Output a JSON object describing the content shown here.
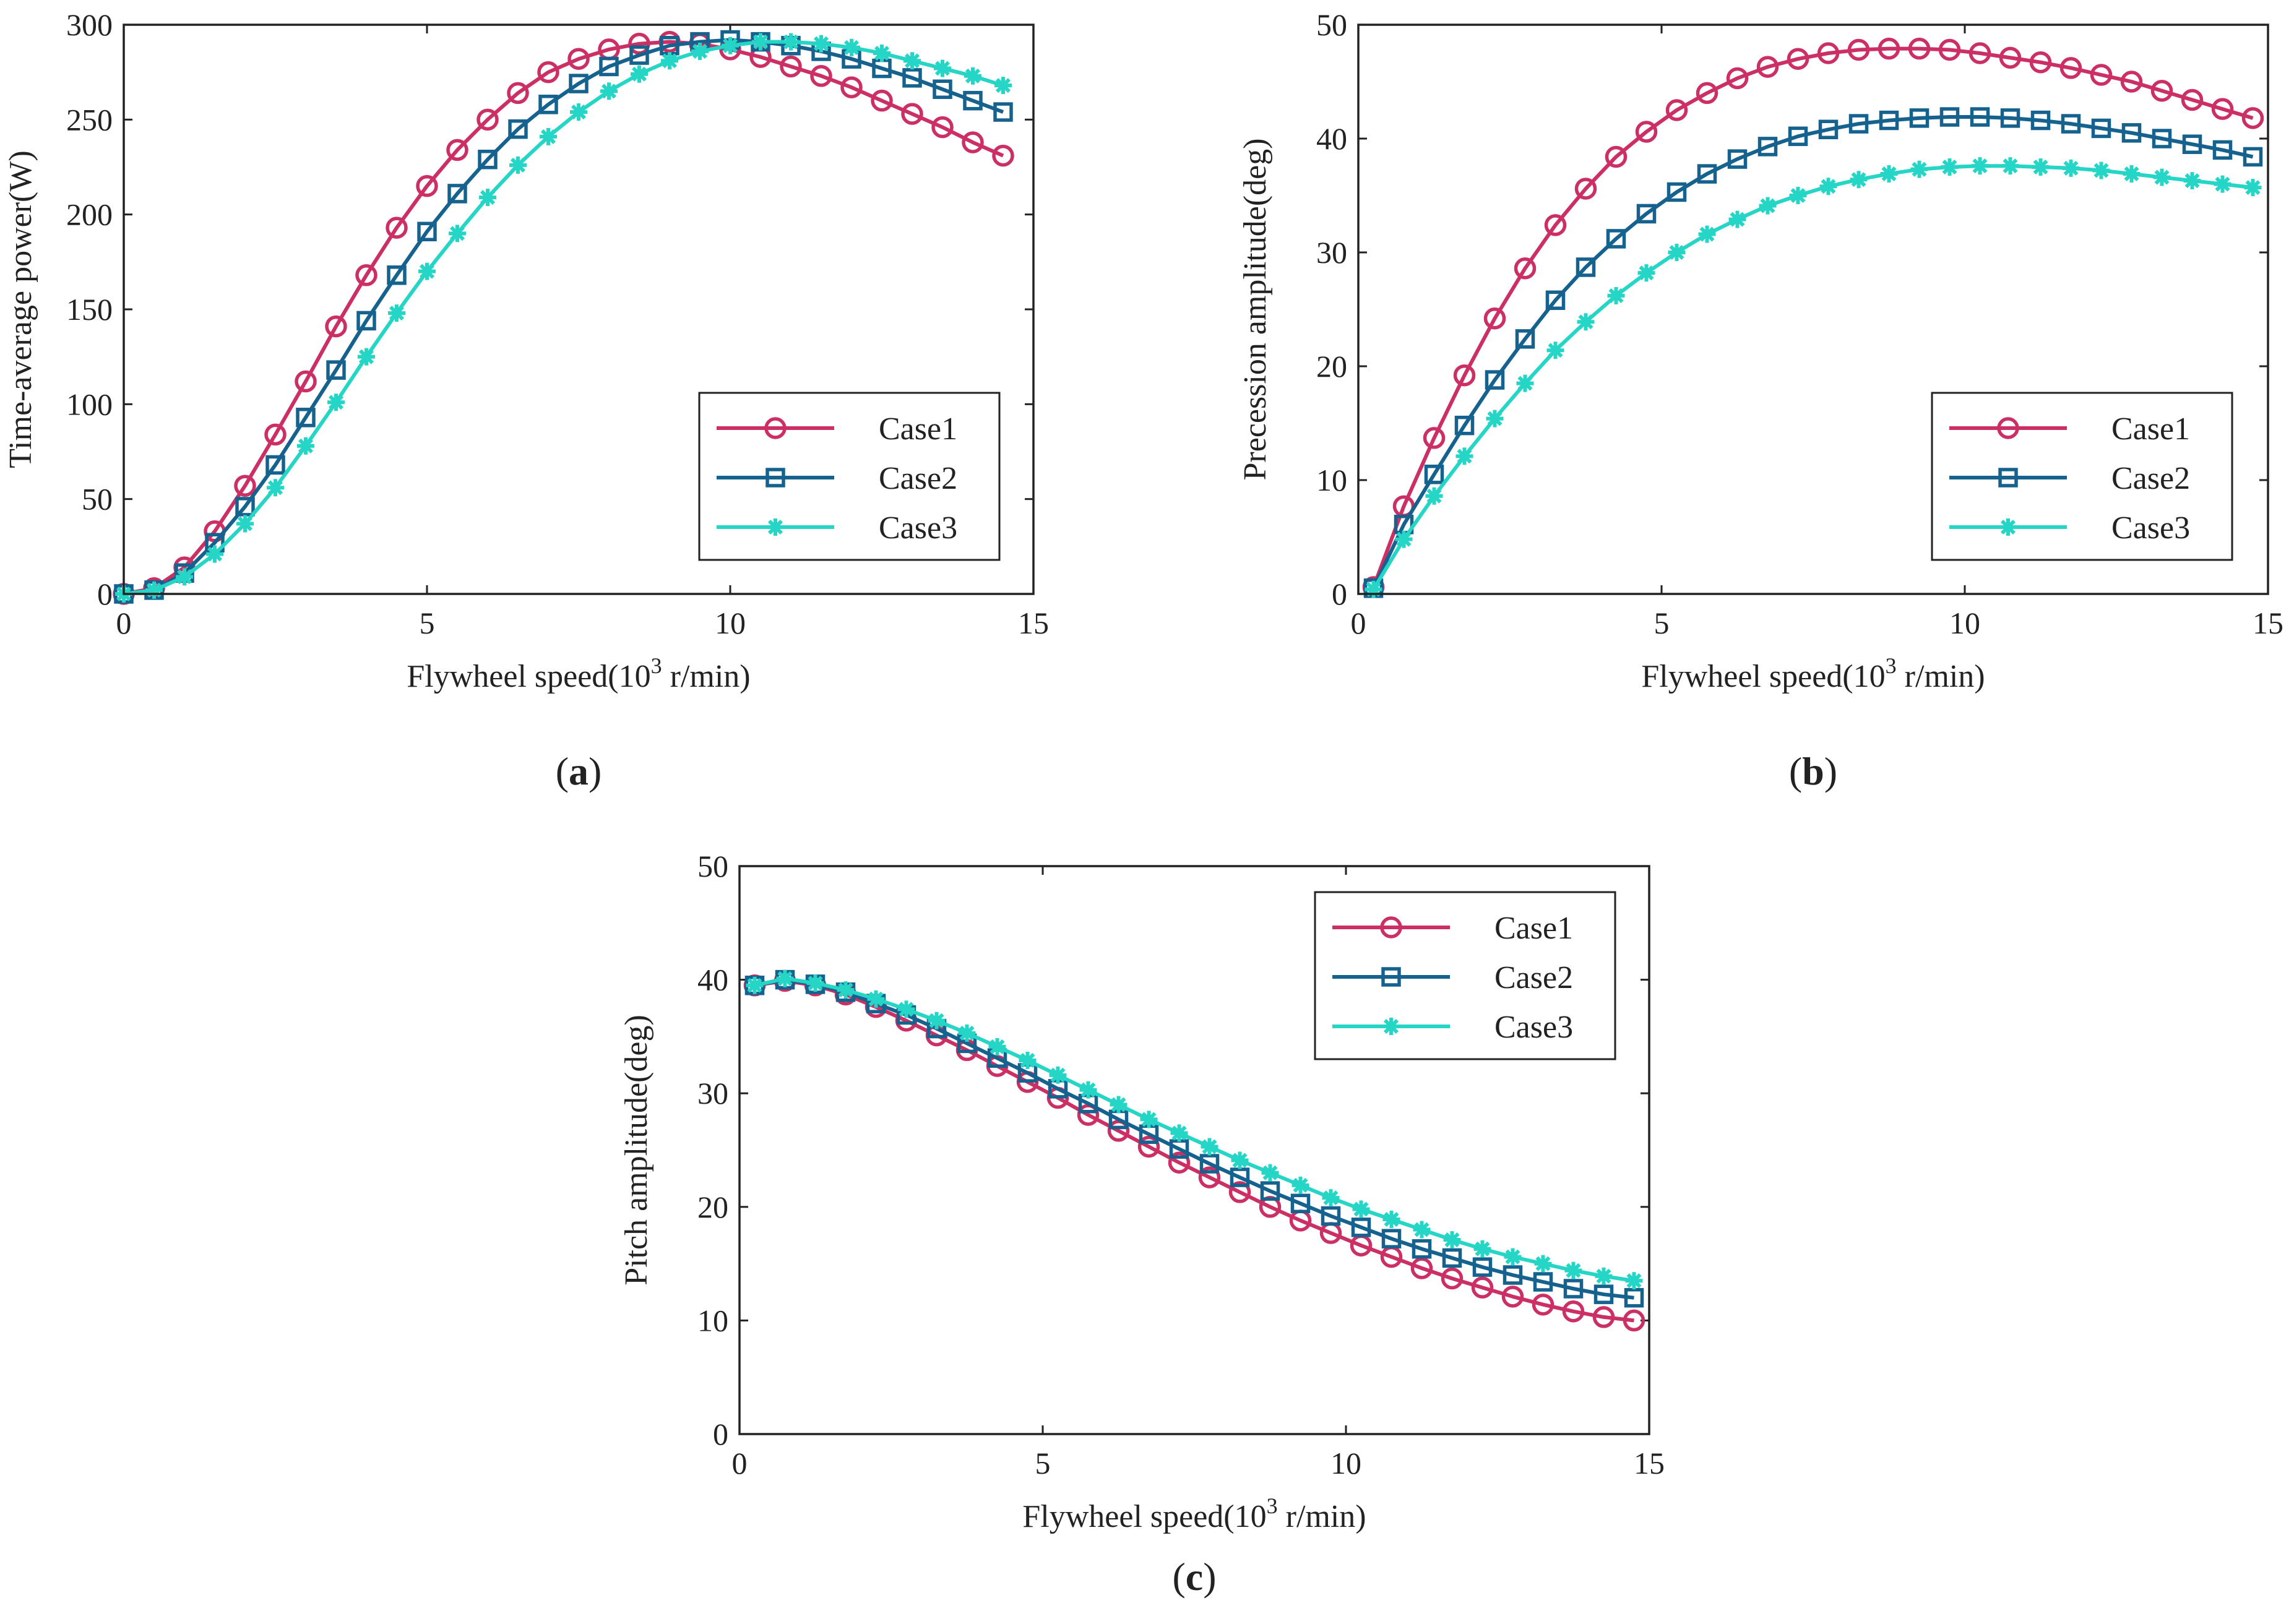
{
  "figure": {
    "panels": [
      "(a)",
      "(b)",
      "(c)"
    ]
  },
  "series_styles": [
    {
      "name": "Case1",
      "color": "#cc2f63",
      "marker": "circle"
    },
    {
      "name": "Case2",
      "color": "#15628f",
      "marker": "square"
    },
    {
      "name": "Case3",
      "color": "#25d5c5",
      "marker": "star"
    }
  ],
  "chart_data": [
    {
      "type": "line",
      "caption_letter": "a",
      "title": "",
      "xlabel": "Flywheel speed(10",
      "xlabel_sup": "3",
      "xlabel_tail": " r/min)",
      "ylabel": "Time-average power(W)",
      "xlim": [
        0,
        15
      ],
      "ylim": [
        0,
        300
      ],
      "xticks": [
        0,
        5,
        10,
        15
      ],
      "yticks": [
        0,
        50,
        100,
        150,
        200,
        250,
        300
      ],
      "legend_position": "bottom-right",
      "x": [
        0,
        0.5,
        1,
        1.5,
        2,
        2.5,
        3,
        3.5,
        4,
        4.5,
        5,
        5.5,
        6,
        6.5,
        7,
        7.5,
        8,
        8.5,
        9,
        9.5,
        10,
        10.5,
        11,
        11.5,
        12,
        12.5,
        13,
        13.5,
        14,
        14.5
      ],
      "series": [
        {
          "name": "Case1",
          "values": [
            0,
            3,
            14,
            33,
            57,
            84,
            112,
            141,
            168,
            193,
            215,
            234,
            250,
            264,
            275,
            282,
            287,
            290,
            291,
            290,
            287,
            283,
            278,
            273,
            267,
            260,
            253,
            246,
            238,
            231
          ]
        },
        {
          "name": "Case2",
          "values": [
            0,
            2,
            11,
            27,
            46,
            68,
            93,
            118,
            144,
            168,
            191,
            211,
            229,
            245,
            258,
            269,
            278,
            284,
            289,
            291,
            292,
            291,
            289,
            286,
            282,
            277,
            272,
            266,
            260,
            254
          ]
        },
        {
          "name": "Case3",
          "values": [
            0,
            2,
            9,
            21,
            37,
            56,
            78,
            101,
            125,
            148,
            170,
            190,
            209,
            226,
            241,
            254,
            265,
            274,
            281,
            286,
            289,
            291,
            291,
            290,
            288,
            285,
            281,
            277,
            273,
            268
          ]
        }
      ]
    },
    {
      "type": "line",
      "caption_letter": "b",
      "title": "",
      "xlabel": "Flywheel speed(10",
      "xlabel_sup": "3",
      "xlabel_tail": " r/min)",
      "ylabel": "Precession amplitude(deg)",
      "xlim": [
        0,
        15
      ],
      "ylim": [
        0,
        50
      ],
      "xticks": [
        0,
        5,
        10,
        15
      ],
      "yticks": [
        0,
        10,
        20,
        30,
        40,
        50
      ],
      "legend_position": "bottom-right",
      "x": [
        0.25,
        0.75,
        1.25,
        1.75,
        2.25,
        2.75,
        3.25,
        3.75,
        4.25,
        4.75,
        5.25,
        5.75,
        6.25,
        6.75,
        7.25,
        7.75,
        8.25,
        8.75,
        9.25,
        9.75,
        10.25,
        10.75,
        11.25,
        11.75,
        12.25,
        12.75,
        13.25,
        13.75,
        14.25,
        14.75
      ],
      "series": [
        {
          "name": "Case1",
          "values": [
            0.6,
            7.7,
            13.7,
            19.2,
            24.2,
            28.6,
            32.4,
            35.6,
            38.4,
            40.6,
            42.5,
            44.0,
            45.3,
            46.3,
            47.0,
            47.5,
            47.8,
            47.9,
            47.9,
            47.8,
            47.5,
            47.1,
            46.7,
            46.2,
            45.6,
            45.0,
            44.2,
            43.4,
            42.6,
            41.8
          ]
        },
        {
          "name": "Case2",
          "values": [
            0.5,
            6.1,
            10.5,
            14.8,
            18.8,
            22.4,
            25.8,
            28.7,
            31.2,
            33.4,
            35.3,
            36.9,
            38.2,
            39.3,
            40.2,
            40.8,
            41.3,
            41.6,
            41.8,
            41.9,
            41.9,
            41.8,
            41.6,
            41.3,
            40.9,
            40.5,
            40.0,
            39.5,
            39.0,
            38.4
          ]
        },
        {
          "name": "Case3",
          "values": [
            0.4,
            4.8,
            8.6,
            12.1,
            15.4,
            18.5,
            21.4,
            23.9,
            26.2,
            28.2,
            30.0,
            31.6,
            32.9,
            34.1,
            35.0,
            35.8,
            36.4,
            36.9,
            37.3,
            37.5,
            37.6,
            37.6,
            37.5,
            37.4,
            37.2,
            36.9,
            36.6,
            36.3,
            36.0,
            35.7
          ]
        }
      ]
    },
    {
      "type": "line",
      "caption_letter": "c",
      "title": "",
      "xlabel": "Flywheel speed(10",
      "xlabel_sup": "3",
      "xlabel_tail": " r/min)",
      "ylabel": "Pitch amplitude(deg)",
      "xlim": [
        0,
        15
      ],
      "ylim": [
        0,
        50
      ],
      "xticks": [
        0,
        5,
        10,
        15
      ],
      "yticks": [
        0,
        10,
        20,
        30,
        40,
        50
      ],
      "legend_position": "top-right",
      "x": [
        0.25,
        0.75,
        1.25,
        1.75,
        2.25,
        2.75,
        3.25,
        3.75,
        4.25,
        4.75,
        5.25,
        5.75,
        6.25,
        6.75,
        7.25,
        7.75,
        8.25,
        8.75,
        9.25,
        9.75,
        10.25,
        10.75,
        11.25,
        11.75,
        12.25,
        12.75,
        13.25,
        13.75,
        14.25,
        14.75
      ],
      "series": [
        {
          "name": "Case1",
          "values": [
            39.5,
            39.9,
            39.5,
            38.7,
            37.6,
            36.4,
            35.1,
            33.8,
            32.4,
            31.0,
            29.6,
            28.1,
            26.7,
            25.3,
            23.9,
            22.6,
            21.3,
            20.0,
            18.8,
            17.7,
            16.6,
            15.6,
            14.6,
            13.7,
            12.9,
            12.1,
            11.4,
            10.8,
            10.3,
            10.0
          ]
        },
        {
          "name": "Case2",
          "values": [
            39.5,
            40.0,
            39.6,
            38.9,
            37.9,
            36.9,
            35.7,
            34.4,
            33.1,
            31.8,
            30.4,
            29.1,
            27.7,
            26.4,
            25.1,
            23.8,
            22.6,
            21.4,
            20.3,
            19.2,
            18.2,
            17.2,
            16.3,
            15.5,
            14.7,
            14.0,
            13.4,
            12.8,
            12.3,
            12.0
          ]
        },
        {
          "name": "Case3",
          "values": [
            39.5,
            40.1,
            39.7,
            39.1,
            38.3,
            37.4,
            36.4,
            35.3,
            34.1,
            32.9,
            31.6,
            30.3,
            29.0,
            27.7,
            26.5,
            25.3,
            24.1,
            23.0,
            21.9,
            20.8,
            19.8,
            18.9,
            18.0,
            17.1,
            16.3,
            15.6,
            15.0,
            14.4,
            13.9,
            13.5
          ]
        }
      ]
    }
  ]
}
